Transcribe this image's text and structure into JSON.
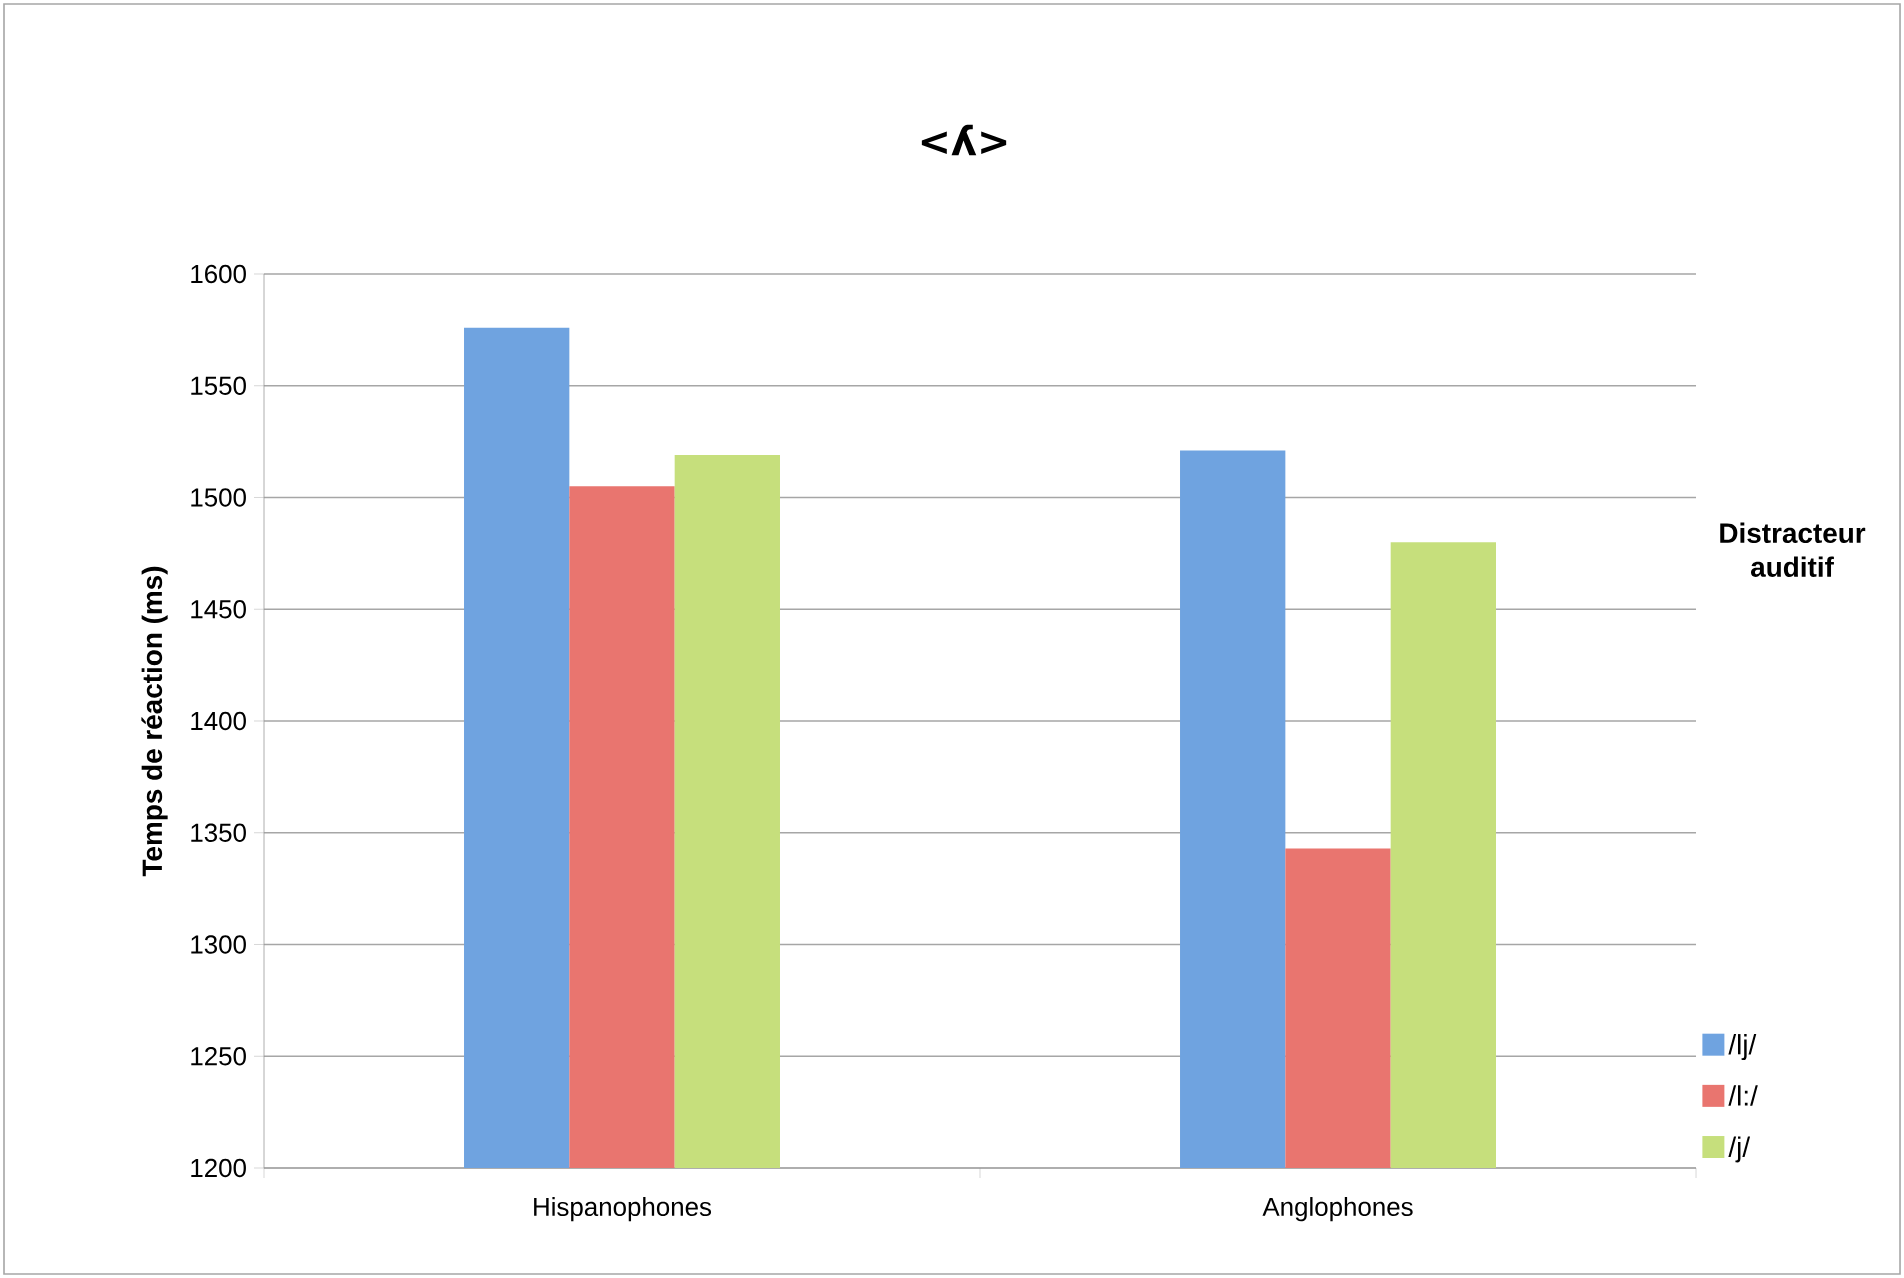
{
  "chart_data": {
    "type": "bar",
    "title": "<ʎ>",
    "ylabel": "Temps de réaction (ms)",
    "legend_title": "Distracteur auditif",
    "categories": [
      "Hispanophones",
      "Anglophones"
    ],
    "series": [
      {
        "name": "/lj/",
        "color": "#6fa3e0",
        "values": [
          1576,
          1521
        ]
      },
      {
        "name": "/l:/",
        "color": "#e9756f",
        "values": [
          1505,
          1343
        ]
      },
      {
        "name": "/j/",
        "color": "#c6df7c",
        "values": [
          1519,
          1480
        ]
      }
    ],
    "ylim": [
      1200,
      1600
    ],
    "yticks": [
      1200,
      1250,
      1300,
      1350,
      1400,
      1450,
      1500,
      1550,
      1600
    ],
    "grid": "y",
    "legend": "right"
  }
}
